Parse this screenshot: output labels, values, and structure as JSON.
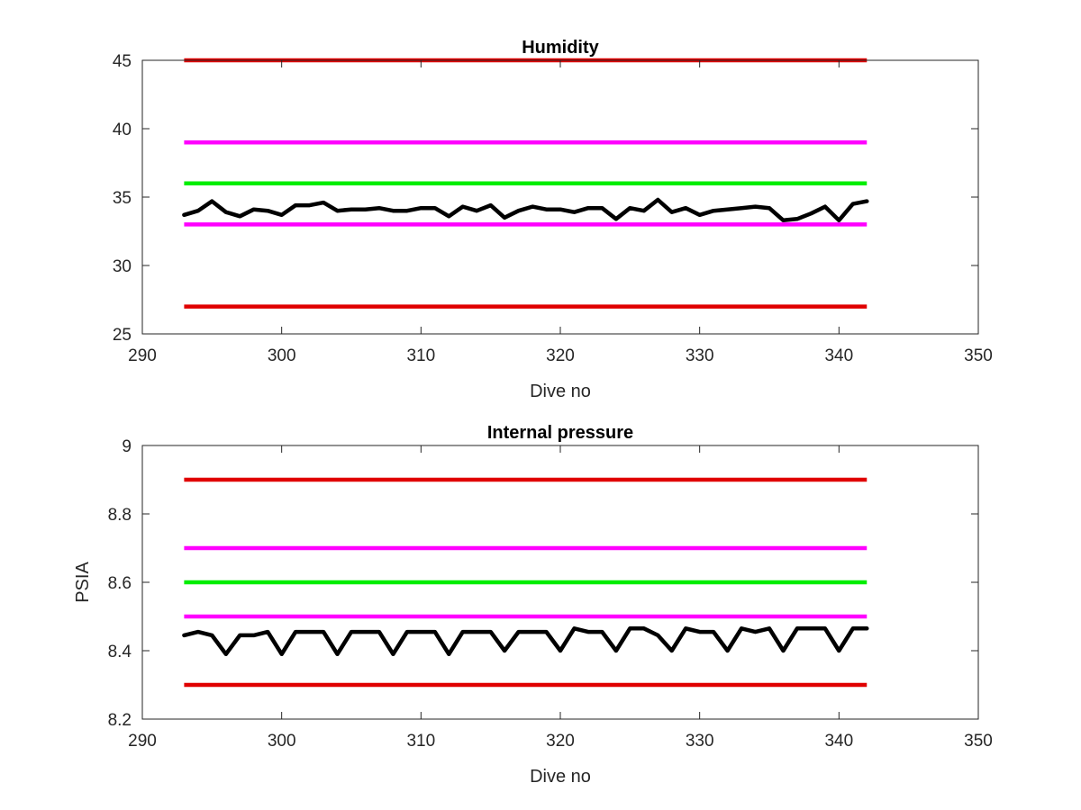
{
  "chart_data": [
    {
      "type": "line",
      "title": "Humidity",
      "xlabel": "Dive no",
      "ylabel": "",
      "xlim": [
        290,
        350
      ],
      "ylim": [
        25,
        45
      ],
      "xticks": [
        "290",
        "300",
        "310",
        "320",
        "330",
        "340",
        "350"
      ],
      "yticks": [
        "25",
        "30",
        "35",
        "40",
        "45"
      ],
      "grid": false,
      "thresholds": [
        {
          "y": 45,
          "x": [
            293,
            342
          ],
          "color": "#e00000"
        },
        {
          "y": 39,
          "x": [
            293,
            342
          ],
          "color": "#ff00ff"
        },
        {
          "y": 36,
          "x": [
            293,
            342
          ],
          "color": "#00ee00"
        },
        {
          "y": 33,
          "x": [
            293,
            342
          ],
          "color": "#ff00ff"
        },
        {
          "y": 27,
          "x": [
            293,
            342
          ],
          "color": "#e00000"
        }
      ],
      "series": [
        {
          "color": "#000000",
          "x": [
            293,
            294,
            295,
            296,
            297,
            298,
            299,
            300,
            301,
            302,
            303,
            304,
            305,
            306,
            307,
            308,
            309,
            310,
            311,
            312,
            313,
            314,
            315,
            316,
            317,
            318,
            319,
            320,
            321,
            322,
            323,
            324,
            325,
            326,
            327,
            328,
            329,
            330,
            331,
            332,
            333,
            334,
            335,
            336,
            337,
            338,
            339,
            340,
            341,
            342
          ],
          "values": [
            33.7,
            34.0,
            34.7,
            33.9,
            33.6,
            34.1,
            34.0,
            33.7,
            34.4,
            34.4,
            34.6,
            34.0,
            34.1,
            34.1,
            34.2,
            34.0,
            34.0,
            34.2,
            34.2,
            33.6,
            34.3,
            34.0,
            34.4,
            33.5,
            34.0,
            34.3,
            34.1,
            34.1,
            33.9,
            34.2,
            34.2,
            33.4,
            34.2,
            34.0,
            34.8,
            33.9,
            34.2,
            33.7,
            34.0,
            34.1,
            34.2,
            34.3,
            34.2,
            33.3,
            33.4,
            33.8,
            34.3,
            33.3,
            34.5,
            34.7
          ]
        }
      ]
    },
    {
      "type": "line",
      "title": "Internal pressure",
      "xlabel": "Dive no",
      "ylabel": "PSIA",
      "xlim": [
        290,
        350
      ],
      "ylim": [
        8.2,
        9.0
      ],
      "xticks": [
        "290",
        "300",
        "310",
        "320",
        "330",
        "340",
        "350"
      ],
      "yticks": [
        "8.2",
        "8.4",
        "8.6",
        "8.8",
        "9"
      ],
      "grid": false,
      "thresholds": [
        {
          "y": 8.9,
          "x": [
            293,
            342
          ],
          "color": "#e00000"
        },
        {
          "y": 8.7,
          "x": [
            293,
            342
          ],
          "color": "#ff00ff"
        },
        {
          "y": 8.6,
          "x": [
            293,
            342
          ],
          "color": "#00ee00"
        },
        {
          "y": 8.5,
          "x": [
            293,
            342
          ],
          "color": "#ff00ff"
        },
        {
          "y": 8.3,
          "x": [
            293,
            342
          ],
          "color": "#e00000"
        }
      ],
      "series": [
        {
          "color": "#000000",
          "x": [
            293,
            294,
            295,
            296,
            297,
            298,
            299,
            300,
            301,
            302,
            303,
            304,
            305,
            306,
            307,
            308,
            309,
            310,
            311,
            312,
            313,
            314,
            315,
            316,
            317,
            318,
            319,
            320,
            321,
            322,
            323,
            324,
            325,
            326,
            327,
            328,
            329,
            330,
            331,
            332,
            333,
            334,
            335,
            336,
            337,
            338,
            339,
            340,
            341,
            342
          ],
          "values": [
            8.445,
            8.455,
            8.445,
            8.39,
            8.445,
            8.445,
            8.455,
            8.39,
            8.455,
            8.455,
            8.455,
            8.39,
            8.455,
            8.455,
            8.455,
            8.39,
            8.455,
            8.455,
            8.455,
            8.39,
            8.455,
            8.455,
            8.455,
            8.4,
            8.455,
            8.455,
            8.455,
            8.4,
            8.465,
            8.455,
            8.455,
            8.4,
            8.465,
            8.465,
            8.445,
            8.4,
            8.465,
            8.455,
            8.455,
            8.4,
            8.465,
            8.455,
            8.465,
            8.4,
            8.465,
            8.465,
            8.465,
            8.4,
            8.465,
            8.465
          ]
        }
      ]
    }
  ]
}
